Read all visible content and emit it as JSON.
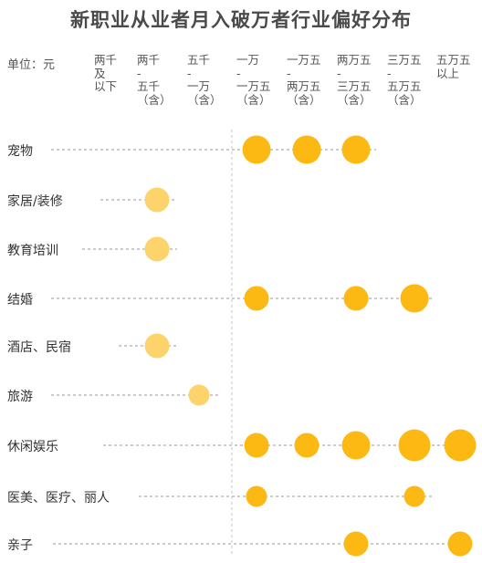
{
  "chart_data": {
    "type": "scatter",
    "title": "新职业从业者月入破万者行业偏好分布",
    "unit_label": "单位：元",
    "columns": [
      "两千\n及\n以下",
      "两千\n-\n五千\n（含）",
      "五千\n-\n一万\n（含）",
      "一万\n-\n一万五\n（含）",
      "一万五\n-\n两万五\n（含）",
      "两万五\n-\n三万五\n（含）",
      "三万五\n-\n五万五\n（含）",
      "五万五\n以上"
    ],
    "rows": [
      "宠物",
      "家居/装修",
      "教育培训",
      "结婚",
      "酒店、民宿",
      "旅游",
      "休闲娱乐",
      "医美、医疗、丽人",
      "亲子"
    ],
    "points": [
      {
        "row": 0,
        "col": 3,
        "size": 3
      },
      {
        "row": 0,
        "col": 4,
        "size": 3
      },
      {
        "row": 0,
        "col": 5,
        "size": 3
      },
      {
        "row": 1,
        "col": 1,
        "size": 2
      },
      {
        "row": 2,
        "col": 1,
        "size": 2
      },
      {
        "row": 3,
        "col": 3,
        "size": 2
      },
      {
        "row": 3,
        "col": 5,
        "size": 2
      },
      {
        "row": 3,
        "col": 6,
        "size": 3
      },
      {
        "row": 4,
        "col": 1,
        "size": 2
      },
      {
        "row": 5,
        "col": 2,
        "size": 1
      },
      {
        "row": 6,
        "col": 3,
        "size": 2
      },
      {
        "row": 6,
        "col": 4,
        "size": 2
      },
      {
        "row": 6,
        "col": 5,
        "size": 3
      },
      {
        "row": 6,
        "col": 6,
        "size": 4
      },
      {
        "row": 6,
        "col": 7,
        "size": 4
      },
      {
        "row": 7,
        "col": 3,
        "size": 1
      },
      {
        "row": 7,
        "col": 6,
        "size": 1
      },
      {
        "row": 8,
        "col": 5,
        "size": 2
      },
      {
        "row": 8,
        "col": 7,
        "size": 2
      }
    ],
    "colors": {
      "dark": "#FDB913",
      "light": "#FDD36B",
      "line": "#9a9a9a"
    },
    "grid": false,
    "legend": "none"
  }
}
